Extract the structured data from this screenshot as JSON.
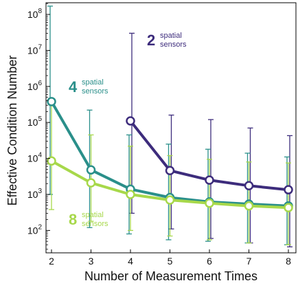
{
  "chart_data": {
    "type": "line",
    "xlabel": "Number of Measurement Times",
    "ylabel": "Effective Condition Number",
    "x_ticks": [
      "2",
      "3",
      "4",
      "5",
      "6",
      "7",
      "8"
    ],
    "y_scale": "log",
    "ylim": [
      30,
      200000000
    ],
    "y_ticks": [
      {
        "value": 100,
        "base": "10",
        "exp": "2"
      },
      {
        "value": 1000,
        "base": "10",
        "exp": "3"
      },
      {
        "value": 10000,
        "base": "10",
        "exp": "4"
      },
      {
        "value": 100000,
        "base": "10",
        "exp": "5"
      },
      {
        "value": 1000000,
        "base": "10",
        "exp": "6"
      },
      {
        "value": 10000000,
        "base": "10",
        "exp": "7"
      },
      {
        "value": 100000000,
        "base": "10",
        "exp": "8"
      }
    ],
    "series": [
      {
        "name": "2 spatial sensors",
        "color": "#3d2c7c",
        "x": [
          4,
          5,
          6,
          7,
          8
        ],
        "y": [
          110000,
          4600,
          2500,
          1750,
          1350
        ],
        "err_low": [
          300,
          110,
          60,
          45,
          35
        ],
        "err_high": [
          30000000,
          160000,
          120000,
          70000,
          43000
        ],
        "label": {
          "num": "2",
          "text": [
            "spatial",
            "sensors"
          ]
        }
      },
      {
        "name": "4 spatial sensors",
        "color": "#2a8f8a",
        "x": [
          2,
          3,
          4,
          5,
          6,
          7,
          8
        ],
        "y": [
          380000,
          4800,
          1400,
          820,
          620,
          540,
          480
        ],
        "err_low": [
          1000,
          120,
          80,
          55,
          50,
          45,
          40
        ],
        "err_high": [
          170000000,
          220000,
          45000,
          25000,
          18000,
          14000,
          11000
        ],
        "label": {
          "num": "4",
          "text": [
            "spatial",
            "sensors"
          ]
        }
      },
      {
        "name": "8 spatial sensors",
        "color": "#a7d84a",
        "x": [
          2,
          3,
          4,
          5,
          6,
          7,
          8
        ],
        "y": [
          8500,
          2100,
          1000,
          700,
          570,
          480,
          430
        ],
        "err_low": [
          380,
          180,
          100,
          70,
          55,
          45,
          40
        ],
        "err_high": [
          300000,
          45000,
          22000,
          12000,
          9500,
          8000,
          7500
        ],
        "label": {
          "num": "8",
          "text": [
            "spatial",
            "sensors"
          ]
        }
      }
    ]
  }
}
